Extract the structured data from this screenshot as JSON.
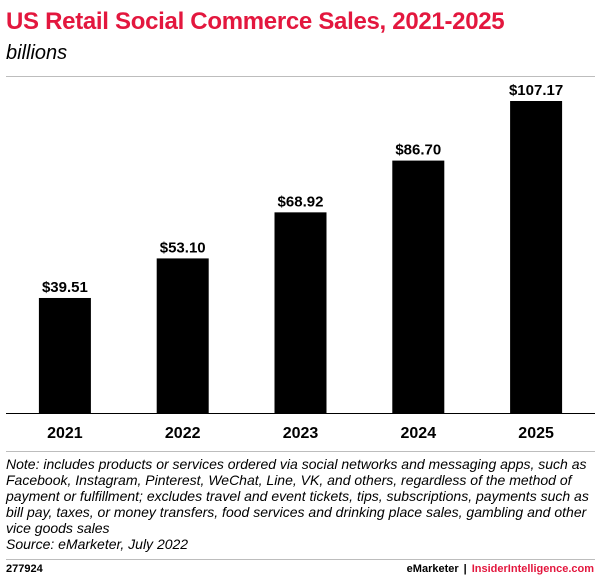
{
  "title": "US Retail Social Commerce Sales, 2021-2025",
  "subtitle": "billions",
  "chart_data": {
    "type": "bar",
    "title": "US Retail Social Commerce Sales, 2021-2025",
    "subtitle": "billions",
    "categories": [
      "2021",
      "2022",
      "2023",
      "2024",
      "2025"
    ],
    "values": [
      39.51,
      53.1,
      68.92,
      86.7,
      107.17
    ],
    "value_labels": [
      "$39.51",
      "$53.10",
      "$68.92",
      "$86.70",
      "$107.17"
    ],
    "xlabel": "",
    "ylabel": "",
    "ylim": [
      0,
      107.17
    ],
    "grid": false,
    "bar_color": "#000000"
  },
  "notes": {
    "note": "Note: includes products or services ordered via social networks and messaging apps, such as Facebook, Instagram, Pinterest, WeChat, Line, VK, and others, regardless of the method of payment or fulfillment; excludes travel and event tickets, tips, subscriptions, payments such as bill pay, taxes, or money transfers, food services and drinking place sales, gambling and other vice goods sales",
    "source": "Source: eMarketer, July 2022"
  },
  "footer": {
    "chart_id": "277924",
    "brand_primary": "eMarketer",
    "separator": "|",
    "brand_secondary": "InsiderIntelligence.com"
  },
  "colors": {
    "title": "#e3173e",
    "bars": "#000000",
    "brand_secondary": "#e3173e"
  }
}
